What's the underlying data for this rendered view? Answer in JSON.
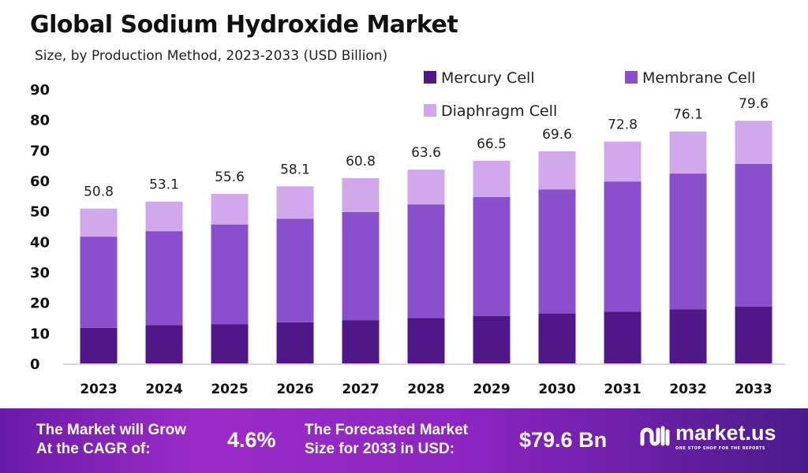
{
  "chart_data": {
    "type": "bar",
    "stacked": true,
    "title": "Global Sodium Hydroxide Market",
    "subtitle": "Size, by Production Method, 2023-2033 (USD Billion)",
    "categories": [
      "2023",
      "2024",
      "2025",
      "2026",
      "2027",
      "2028",
      "2029",
      "2030",
      "2031",
      "2032",
      "2033"
    ],
    "series": [
      {
        "name": "Mercury Cell",
        "color": "#4f1787",
        "values": [
          11.7,
          12.6,
          12.9,
          13.5,
          14.2,
          14.9,
          15.6,
          16.4,
          17.0,
          17.8,
          18.7
        ]
      },
      {
        "name": "Membrane Cell",
        "color": "#8a4fcc",
        "values": [
          29.9,
          30.8,
          32.7,
          34.0,
          35.5,
          37.3,
          39.0,
          40.7,
          42.7,
          44.5,
          46.8
        ]
      },
      {
        "name": "Diaphragm Cell",
        "color": "#d2a8ec",
        "values": [
          9.2,
          9.7,
          10.0,
          10.6,
          11.1,
          11.4,
          11.9,
          12.5,
          13.1,
          13.8,
          14.1
        ]
      }
    ],
    "totals": [
      "50.8",
      "53.1",
      "55.6",
      "58.1",
      "60.8",
      "63.6",
      "66.5",
      "69.6",
      "72.8",
      "76.1",
      "79.6"
    ],
    "ylim": [
      0,
      90
    ],
    "yticks": [
      "0",
      "10",
      "20",
      "30",
      "40",
      "50",
      "60",
      "70",
      "80",
      "90"
    ],
    "grid": false,
    "legend": "top-right"
  },
  "banner": {
    "cagr_label_1": "The Market will Grow",
    "cagr_label_2": "At the CAGR of:",
    "cagr_value": "4.6%",
    "forecast_label_1": "The Forecasted Market",
    "forecast_label_2": "Size for 2033 in USD:",
    "forecast_value": "$79.6 Bn",
    "logo_text": "market.us",
    "logo_tagline": "ONE STOP SHOP FOR THE REPORTS"
  }
}
